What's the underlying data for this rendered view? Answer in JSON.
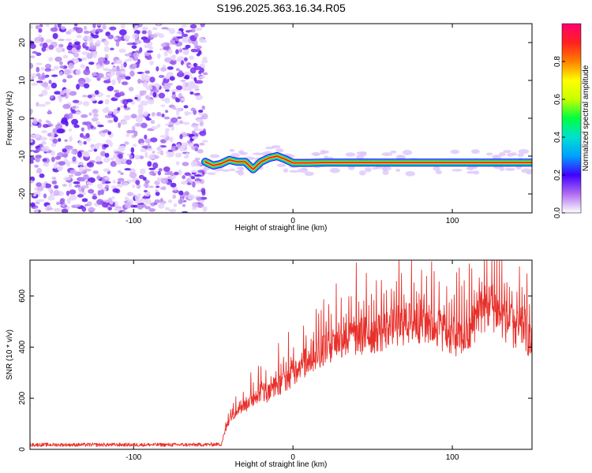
{
  "title": "S196.2025.363.16.34.R05",
  "chart_data": [
    {
      "type": "heatmap",
      "name": "spectrogram",
      "xlabel": "Height of straight line (km)",
      "ylabel": "Frequency (Hz)",
      "xlim": [
        -165,
        150
      ],
      "ylim": [
        -25,
        25
      ],
      "xticks": [
        -100,
        0,
        100
      ],
      "yticks": [
        20,
        10,
        0,
        -10,
        -20
      ],
      "noise_region_x": [
        -165,
        -55
      ],
      "signal_region_x": [
        -55,
        150
      ],
      "signal_trace": {
        "x": [
          -55,
          -50,
          -45,
          -40,
          -35,
          -30,
          -25,
          -20,
          -15,
          -10,
          -5,
          0,
          10,
          20,
          40,
          60,
          80,
          100,
          120,
          150
        ],
        "freq_hz": [
          -11.5,
          -12.5,
          -12,
          -11,
          -11.5,
          -11.5,
          -13.5,
          -11.5,
          -10.5,
          -10,
          -10.8,
          -11.8,
          -11.8,
          -11.7,
          -11.7,
          -11.7,
          -11.7,
          -11.7,
          -11.7,
          -11.7
        ]
      },
      "colorbar": {
        "label": "Normalized spectral amplitude",
        "range": [
          0,
          1
        ],
        "ticks": [
          "0.0",
          "0.2",
          "0.4",
          "0.6",
          "0.8"
        ],
        "colors": [
          "#ffffff",
          "#b06cf0",
          "#4000ff",
          "#00a0ff",
          "#00e0d0",
          "#00ff40",
          "#c8ff00",
          "#ffff00",
          "#ff8000",
          "#ff2020",
          "#ff0070"
        ]
      }
    },
    {
      "type": "line",
      "name": "snr",
      "xlabel": "Height of straight line (km)",
      "ylabel": "SNR (10 * v/v)",
      "xlim": [
        -165,
        150
      ],
      "ylim": [
        0,
        740
      ],
      "xticks": [
        -100,
        0,
        100
      ],
      "yticks": [
        0,
        200,
        400,
        600
      ],
      "color": "#e8302a",
      "series": [
        {
          "name": "SNR",
          "x": [
            -165,
            -140,
            -100,
            -60,
            -45,
            -43,
            -40,
            -35,
            -30,
            -25,
            -20,
            -15,
            -10,
            -5,
            0,
            10,
            20,
            30,
            40,
            50,
            60,
            70,
            80,
            90,
            100,
            110,
            115,
            120,
            125,
            130,
            140,
            145,
            150
          ],
          "y": [
            18,
            18,
            18,
            18,
            20,
            60,
            120,
            160,
            170,
            200,
            230,
            220,
            250,
            270,
            300,
            350,
            400,
            430,
            440,
            450,
            470,
            490,
            500,
            480,
            440,
            440,
            520,
            550,
            560,
            530,
            460,
            480,
            400
          ]
        }
      ]
    }
  ]
}
